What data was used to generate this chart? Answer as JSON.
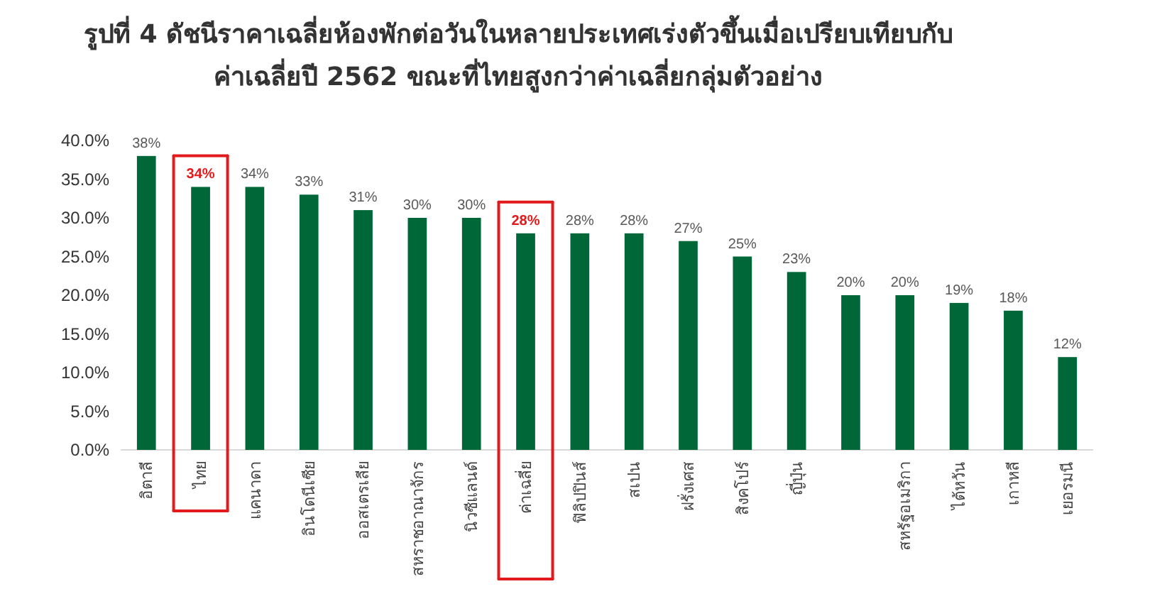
{
  "chart_data": {
    "type": "bar",
    "title": "รูปที่ 4 ดัชนีราคาเฉลี่ยห้องพักต่อวันในหลายประเทศเร่งตัวขึ้นเมื่อเปรียบเทียบกับ\nค่าเฉลี่ยปี 2562 ขณะที่ไทยสูงกว่าค่าเฉลี่ยกลุ่มตัวอย่าง",
    "categories": [
      "อิตาลี",
      "ไทย",
      "แคนาดา",
      "อินโดนีเซีย",
      "ออสเตรเลีย",
      "สหราชอาณาจักร",
      "นิวซีแลนด์",
      "ค่าเฉลี่ย",
      "ฟิลิปปินส์",
      "สเปน",
      "ฝรั่งเศส",
      "สิงคโปร์",
      "ญี่ปุ่น",
      null,
      "สหรัฐอเมริกา",
      "ไต้หวัน",
      "เกาหลี",
      "เยอรมนี"
    ],
    "values": [
      38,
      34,
      34,
      33,
      31,
      30,
      30,
      28,
      28,
      28,
      27,
      25,
      23,
      20,
      20,
      19,
      18,
      12
    ],
    "value_labels": [
      "38%",
      "34%",
      "34%",
      "33%",
      "31%",
      "30%",
      "30%",
      "28%",
      "28%",
      "28%",
      "27%",
      "25%",
      "23%",
      "20%",
      "20%",
      "19%",
      "18%",
      "12%"
    ],
    "color": "#006838",
    "ylim": [
      0,
      40
    ],
    "yticks": [
      {
        "value": 0,
        "label": "0.0%"
      },
      {
        "value": 5,
        "label": "5.0%"
      },
      {
        "value": 10,
        "label": "10.0%"
      },
      {
        "value": 15,
        "label": "15.0%"
      },
      {
        "value": 20,
        "label": "20.0%"
      },
      {
        "value": 25,
        "label": "25.0%"
      },
      {
        "value": 30,
        "label": "30.0%"
      },
      {
        "value": 35,
        "label": "35.0%"
      },
      {
        "value": 40,
        "label": "40.0%"
      }
    ],
    "grid": false
  }
}
